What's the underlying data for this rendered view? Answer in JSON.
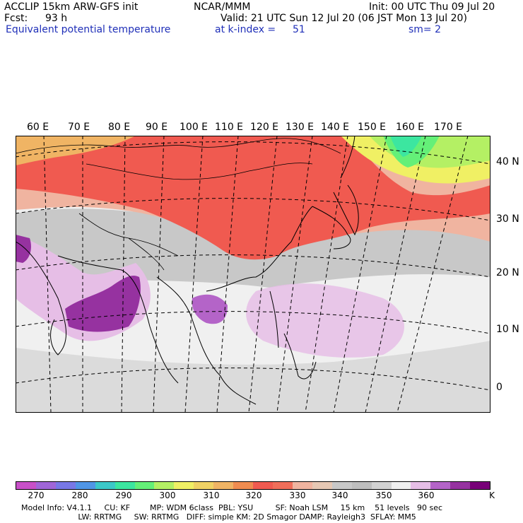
{
  "header": {
    "model": "ACCLIP 15km ARW-GFS init",
    "org": "NCAR/MMM",
    "init": "Init: 00 UTC Thu 09 Jul 20",
    "fcst_label": "Fcst:",
    "fcst_value": "93 h",
    "valid": "Valid: 21 UTC Sun 12 Jul 20 (06 JST Mon 13 Jul 20)",
    "field": "Equivalent potential temperature",
    "kindex_label": "at k-index =",
    "kindex_value": "51",
    "sm": "sm= 2"
  },
  "map": {
    "lon_labels": [
      "60 E",
      "70 E",
      "80 E",
      "90 E",
      "100 E",
      "110 E",
      "120 E",
      "130 E",
      "140 E",
      "150 E",
      "160 E",
      "170 E"
    ],
    "lat_labels": [
      "40 N",
      "30 N",
      "20 N",
      "10 N",
      "0"
    ]
  },
  "colorbar": {
    "colors": [
      "#c850c8",
      "#a066d8",
      "#7878e6",
      "#5096e6",
      "#3cc8c8",
      "#3ce6a0",
      "#64f078",
      "#b4f064",
      "#f0f064",
      "#f0d264",
      "#f0b464",
      "#f08c50",
      "#f05a50",
      "#f06e5a",
      "#f0b4a0",
      "#e6c8b4",
      "#c8c8c8",
      "#bebebe",
      "#d2d2d2",
      "#f0f0f0",
      "#e6bee6",
      "#b464c8",
      "#9632a0",
      "#780078"
    ],
    "ticks": [
      "270",
      "280",
      "290",
      "300",
      "310",
      "320",
      "330",
      "340",
      "350",
      "360"
    ],
    "unit": "K"
  },
  "footer": {
    "line1": "Model Info: V4.1.1     CU: KF        MP: WDM 6class  PBL: YSU         SF: Noah LSM     15 km    51 levels   90 sec",
    "line2": "                       LW: RRTMG     SW: RRTMG   DIFF: simple KM: 2D Smagor DAMP: Rayleigh3  SFLAY: MM5"
  }
}
